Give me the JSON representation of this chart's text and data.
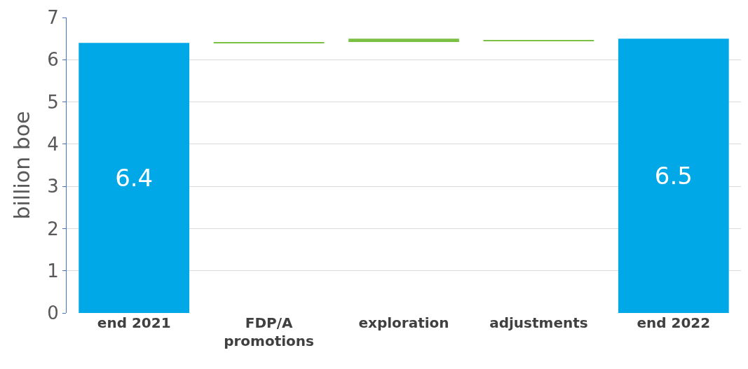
{
  "chart_data": {
    "type": "bar",
    "ylabel": "billion boe",
    "categories": [
      "end 2021",
      "FDP/A promotions",
      "exploration",
      "adjustments",
      "end 2022"
    ],
    "values": [
      6.4,
      0.02,
      0.08,
      0.02,
      6.5
    ],
    "base": [
      0,
      6.4,
      6.42,
      6.45,
      0
    ],
    "colors": [
      "#00a8e8",
      "#7ac143",
      "#7ac143",
      "#7ac143",
      "#00a8e8"
    ],
    "value_labels": [
      "6.4",
      null,
      null,
      null,
      "6.5"
    ],
    "ylim": [
      0,
      7
    ],
    "yticks": [
      0,
      1,
      2,
      3,
      4,
      5,
      6,
      7
    ],
    "grid": "y"
  }
}
